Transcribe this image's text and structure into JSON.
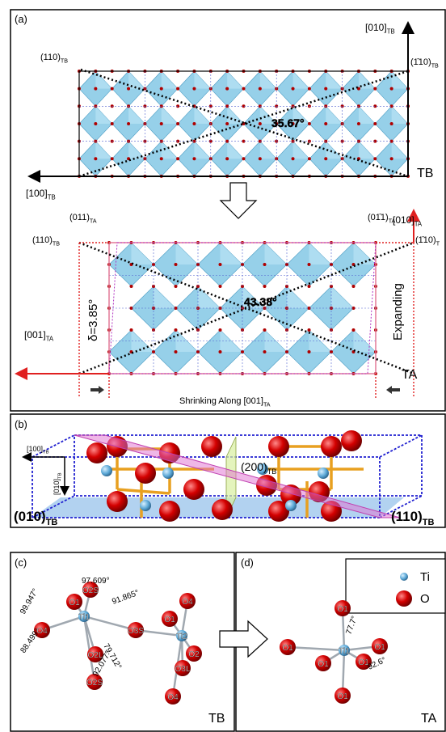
{
  "panel_a": {
    "label": "(a)",
    "tb": {
      "axis_010": {
        "main": "[010]",
        "sub": "TB"
      },
      "axis_100": {
        "main": "[100]",
        "sub": "TB"
      },
      "plane_110": {
        "main": "(110)",
        "sub": "TB"
      },
      "plane_m110": {
        "main": "(1̄10)",
        "sub": "TB"
      },
      "angle": "35.67°",
      "phase": "TB"
    },
    "ta": {
      "axis_010": {
        "main": "[010]",
        "sub": "TA"
      },
      "plane_011": {
        "main": "(011)",
        "sub": "TA"
      },
      "plane_01m1": {
        "main": "(01̄1)",
        "sub": "TA"
      },
      "plane_110": {
        "main": "(110)",
        "sub": "TB"
      },
      "plane_m110": {
        "main": "(1̄10)",
        "sub": "T"
      },
      "delta": "δ=3.85°",
      "angle": "43.38°",
      "expanding": "Expanding",
      "axis_001": {
        "main": "[001]",
        "sub": "TA"
      },
      "phase": "TA",
      "shrinking": {
        "main": "Shrinking Along [001]",
        "sub": "TA"
      }
    }
  },
  "panel_b": {
    "label": "(b)",
    "axis_100": {
      "main": "[100]",
      "sub": "TB"
    },
    "axis_010": {
      "main": "[010]",
      "sub": "TB"
    },
    "plane_200": {
      "main": "(200)",
      "sub": "TB"
    },
    "plane_010": {
      "main": "(010)",
      "sub": "TB"
    },
    "plane_110": {
      "main": "(110)",
      "sub": "TB"
    }
  },
  "panel_c": {
    "label": "(c)",
    "angles": [
      "97.609°",
      "99.947°",
      "91.865°",
      "79.712°",
      "88.499°",
      "92.077°"
    ],
    "atoms": [
      "O2S",
      "O1",
      "O4",
      "Ti1",
      "O3S",
      "O2L",
      "O2S",
      "O4",
      "O1",
      "Ti2",
      "O2",
      "O3L",
      "O4"
    ],
    "phase": "TB"
  },
  "panel_d": {
    "label": "(d)",
    "legend": [
      "Ti",
      "O"
    ],
    "atoms": [
      "O1",
      "O1",
      "O1",
      "Ti1",
      "O1",
      "O1",
      "O1"
    ],
    "angles": [
      "77.7°",
      "92.6°"
    ],
    "phase": "TA"
  }
}
